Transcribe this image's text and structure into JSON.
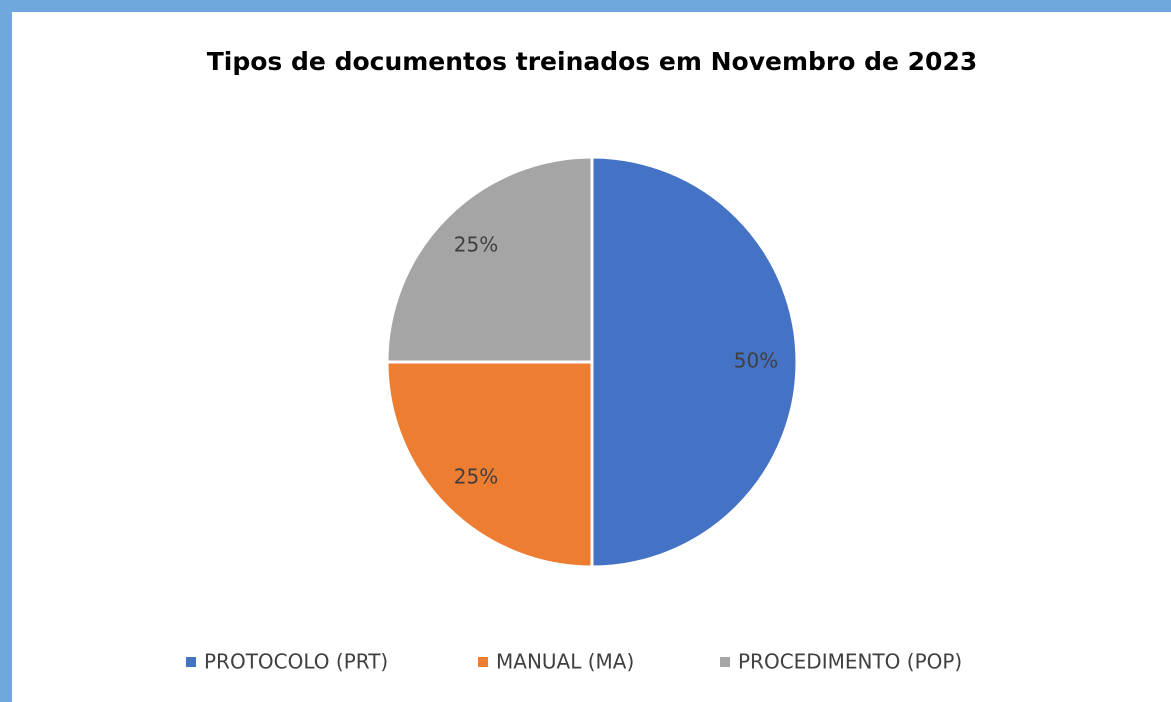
{
  "chart_data": {
    "type": "pie",
    "title": "Tipos de documentos treinados em Novembro de 2023",
    "categories": [
      "PROTOCOLO (PRT)",
      "MANUAL (MA)",
      "PROCEDIMENTO (POP)"
    ],
    "values": [
      50,
      25,
      25
    ],
    "value_labels": [
      "50%",
      "25%",
      "25%"
    ],
    "colors": [
      "#4472c4",
      "#ed7d31",
      "#a5a5a5"
    ],
    "legend": "bottom"
  }
}
